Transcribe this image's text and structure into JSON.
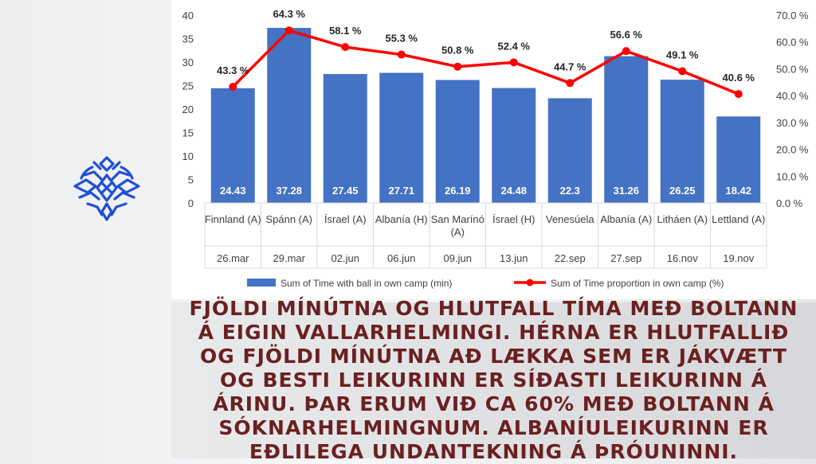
{
  "caption": "Fjöldi mínútna og hlutfall tíma með boltann á eigin vallarhelmingi. Hérna er hlutfallið og fjöldi mínútna að lækka sem er jákvætt og besti leikurinn er síðasti leikurinn á árinu. Þar erum við ca 60% með boltann á sóknarhelmingnum. Albaníuleikurinn er eðlilega undantekning á þróuninni.",
  "logo": {
    "icon": "ksi-crest-icon",
    "color": "#1f4fd6"
  },
  "chart_data": {
    "type": "bar+line",
    "title": "",
    "categories": [
      {
        "label": "Finnland (A)",
        "date": "26.mar"
      },
      {
        "label": "Spánn (A)",
        "date": "29.mar"
      },
      {
        "label": "Ísrael (A)",
        "date": "02.jun"
      },
      {
        "label": "Albanía (H)",
        "date": "06.jun"
      },
      {
        "label": "San Marínó (A)",
        "date": "09.jun"
      },
      {
        "label": "Ísrael (H)",
        "date": "13.jun"
      },
      {
        "label": "Venesúela",
        "date": "22.sep"
      },
      {
        "label": "Albanía (A)",
        "date": "27.sep"
      },
      {
        "label": "Litháen (A)",
        "date": "16.nov"
      },
      {
        "label": "Lettland (A)",
        "date": "19.nov"
      }
    ],
    "series": [
      {
        "name": "Sum of Time with ball in own camp (min)",
        "type": "bar",
        "axis": "left",
        "color": "#4472c4",
        "values": [
          24.43,
          37.28,
          27.45,
          27.71,
          26.19,
          24.48,
          22.3,
          31.26,
          26.25,
          18.42
        ],
        "labels": [
          "24.43",
          "37.28",
          "27.45",
          "27.71",
          "26.19",
          "24.48",
          "22.3",
          "31.26",
          "26.25",
          "18.42"
        ]
      },
      {
        "name": "Sum of Time proportion in own camp (%)",
        "type": "line",
        "axis": "right",
        "color": "#ff0000",
        "values": [
          43.3,
          64.3,
          58.1,
          55.3,
          50.8,
          52.4,
          44.7,
          56.6,
          49.1,
          40.6
        ],
        "labels": [
          "43.3 %",
          "64.3 %",
          "58.1 %",
          "55.3 %",
          "50.8 %",
          "52.4 %",
          "44.7 %",
          "56.6 %",
          "49.1 %",
          "40.6 %"
        ]
      }
    ],
    "y_left": {
      "min": 0,
      "max": 40,
      "step": 5,
      "ticks": [
        "0",
        "5",
        "10",
        "15",
        "20",
        "25",
        "30",
        "35",
        "40"
      ]
    },
    "y_right": {
      "min": 0,
      "max": 70,
      "step": 10,
      "ticks": [
        "0.0 %",
        "10.0 %",
        "20.0 %",
        "30.0 %",
        "40.0 %",
        "50.0 %",
        "60.0 %",
        "70.0 %"
      ]
    },
    "grid": false,
    "legend_position": "bottom"
  }
}
